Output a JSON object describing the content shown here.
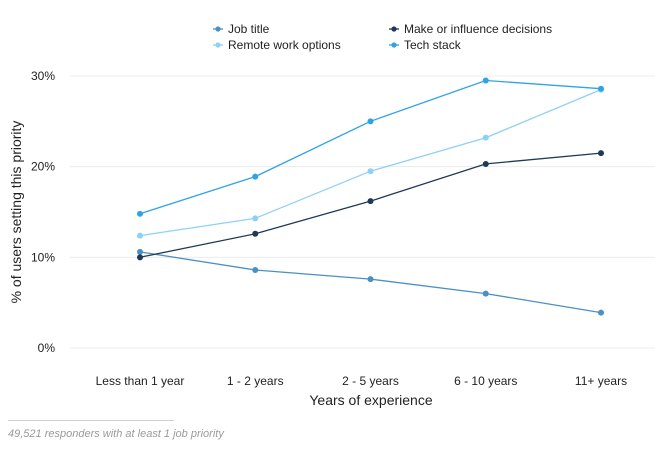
{
  "chart_data": {
    "type": "line",
    "categories": [
      "Less than 1 year",
      "1 - 2 years",
      "2 - 5 years",
      "6 - 10 years",
      "11+ years"
    ],
    "xlabel": "Years of experience",
    "ylabel": "% of users setting this priority",
    "ylim": [
      0,
      30
    ],
    "yticks": [
      0,
      10,
      20,
      30
    ],
    "ytick_labels": [
      "0%",
      "10%",
      "20%",
      "30%"
    ],
    "grid": true,
    "legend_position": "top-center",
    "series": [
      {
        "name": "Job title",
        "color": "#4a90c4",
        "values": [
          10.6,
          8.6,
          7.6,
          6.0,
          3.9
        ]
      },
      {
        "name": "Make or influence decisions",
        "color": "#1f3a56",
        "values": [
          10.0,
          12.6,
          16.2,
          20.3,
          21.5
        ]
      },
      {
        "name": "Remote work options",
        "color": "#8fd0f7",
        "values": [
          12.4,
          14.3,
          19.5,
          23.2,
          28.5
        ]
      },
      {
        "name": "Tech stack",
        "color": "#2fa2e8",
        "values": [
          14.8,
          18.9,
          25.0,
          29.5,
          28.6
        ]
      }
    ]
  },
  "footnote": "49,521 responders with at least 1 job priority"
}
